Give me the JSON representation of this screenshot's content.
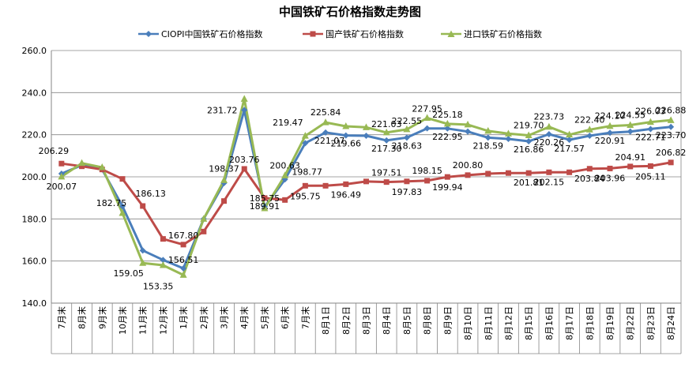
{
  "chart_data": {
    "type": "line",
    "title": "中国铁矿石价格指数走势图",
    "xlabel": "",
    "ylabel": "",
    "ylim": [
      140.0,
      260.0
    ],
    "yticks": [
      "140.0",
      "160.0",
      "180.0",
      "200.0",
      "220.0",
      "240.0",
      "260.0"
    ],
    "grid": "horizontal",
    "legend_position": "top",
    "categories": [
      "7月末",
      "8月末",
      "9月末",
      "10月末",
      "11月末",
      "12月末",
      "1月末",
      "2月末",
      "3月末",
      "4月末",
      "5月末",
      "6月末",
      "7月末",
      "8月1日",
      "8月2日",
      "8月3日",
      "8月4日",
      "8月5日",
      "8月8日",
      "8月9日",
      "8月10日",
      "8月11日",
      "8月12日",
      "8月15日",
      "8月16日",
      "8月17日",
      "8月18日",
      "8月19日",
      "8月22日",
      "8月23日",
      "8月24日"
    ],
    "series": [
      {
        "name": "CIOPI中国铁矿石价格指数",
        "color": "#4a7ebb",
        "marker": "diamond",
        "values": [
          201.5,
          205.5,
          203.5,
          186.0,
          165.0,
          160.5,
          156.51,
          180.0,
          197.0,
          231.72,
          185.75,
          198.77,
          216.0,
          221.07,
          219.66,
          219.5,
          217.3,
          218.63,
          223.0,
          222.95,
          221.5,
          218.59,
          218.0,
          216.86,
          220.26,
          217.57,
          219.5,
          220.91,
          221.5,
          222.71,
          223.7
        ],
        "labels": [
          "",
          "",
          "",
          "",
          "",
          "",
          "156.51",
          "",
          "",
          "231.72",
          "185.75",
          "198.77",
          "",
          "221.07",
          "219.66",
          "",
          "217.30",
          "218.63",
          "",
          "222.95",
          "",
          "218.59",
          "",
          "216.86",
          "220.26",
          "217.57",
          "",
          "220.91",
          "",
          "222.71",
          "223.70"
        ]
      },
      {
        "name": "国产铁矿石价格指数",
        "color": "#be4b48",
        "marker": "square",
        "values": [
          206.29,
          205.0,
          203.5,
          199.0,
          186.13,
          170.5,
          167.8,
          174.0,
          188.5,
          203.76,
          189.91,
          189.0,
          195.75,
          195.75,
          196.49,
          197.8,
          197.51,
          197.83,
          198.15,
          199.94,
          200.8,
          201.5,
          201.8,
          201.81,
          202.15,
          202.15,
          203.84,
          203.96,
          204.91,
          205.11,
          206.82
        ],
        "labels": [
          "206.29",
          "",
          "",
          "",
          "186.13",
          "",
          "167.80",
          "",
          "",
          "203.76",
          "189.91",
          "",
          "195.75",
          "",
          "196.49",
          "",
          "197.51",
          "197.83",
          "198.15",
          "199.94",
          "200.80",
          "",
          "",
          "201.81",
          "202.15",
          "",
          "203.84",
          "203.96",
          "204.91",
          "205.11",
          "206.82"
        ]
      },
      {
        "name": "进口铁矿石价格指数",
        "color": "#98b954",
        "marker": "triangle",
        "values": [
          200.07,
          206.5,
          204.5,
          182.75,
          159.05,
          158.0,
          153.35,
          180.0,
          198.37,
          237.0,
          185.0,
          200.63,
          219.47,
          225.84,
          224.0,
          223.5,
          221.03,
          222.55,
          227.95,
          225.18,
          224.8,
          221.8,
          220.5,
          219.7,
          223.73,
          220.0,
          222.4,
          224.1,
          224.55,
          226.03,
          226.88
        ],
        "labels": [
          "200.07",
          "",
          "",
          "182.75",
          "159.05",
          "",
          "153.35",
          "",
          "198.37",
          "",
          "",
          "200.63",
          "219.47",
          "225.84",
          "",
          "",
          "221.03",
          "222.55",
          "227.95",
          "225.18",
          "",
          "",
          "",
          "219.70",
          "223.73",
          "",
          "222.40",
          "224.10",
          "224.55",
          "226.03",
          "226.88"
        ]
      }
    ]
  }
}
